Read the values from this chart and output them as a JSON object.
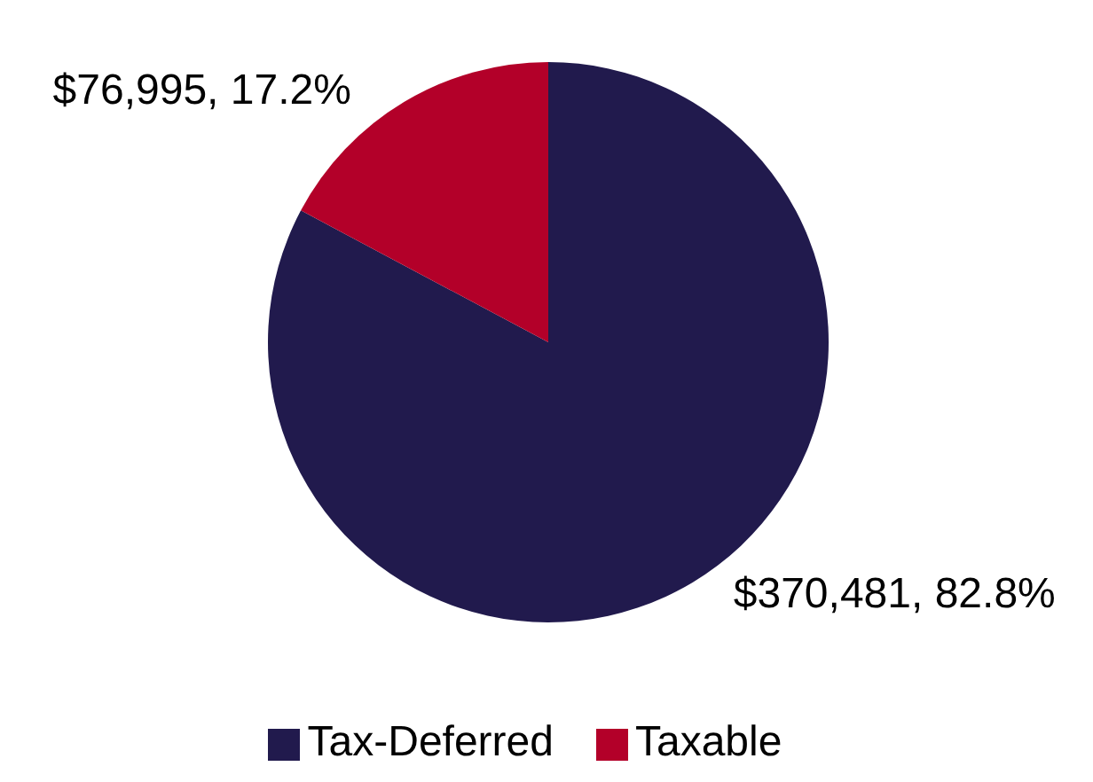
{
  "chart_data": {
    "type": "pie",
    "categories": [
      "Tax-Deferred",
      "Taxable"
    ],
    "values": [
      370481,
      76995
    ],
    "colors": [
      "#211a4d",
      "#b30029"
    ],
    "value_labels": [
      "$370,481, 82.8%",
      "$76,995, 17.2%"
    ],
    "legend": "bottom"
  }
}
